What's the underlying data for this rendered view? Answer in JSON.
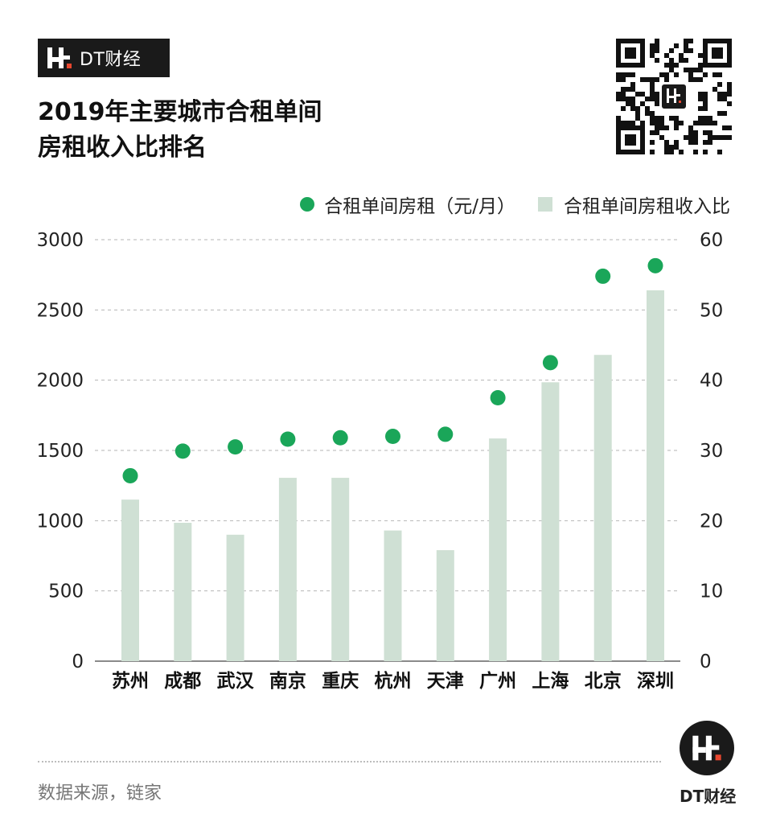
{
  "brand": {
    "name": "DT财经"
  },
  "title": {
    "line1": "2019年主要城市合租单间",
    "line2": "房租收入比排名"
  },
  "legend": {
    "rent": "合租单间房租（元/月）",
    "ratio": "合租单间房租收入比"
  },
  "footer": {
    "source": "数据来源，链家",
    "brand": "DT财经"
  },
  "colors": {
    "dot": "#1aa659",
    "bar": "#cfe0d4",
    "grid": "#b5b5b5",
    "text": "#222222"
  },
  "chart_data": {
    "type": "bar",
    "categories": [
      "苏州",
      "成都",
      "武汉",
      "南京",
      "重庆",
      "杭州",
      "天津",
      "广州",
      "上海",
      "北京",
      "深圳"
    ],
    "series": [
      {
        "name": "合租单间房租（元/月）",
        "type": "scatter",
        "axis": "left",
        "values": [
          1320,
          1495,
          1525,
          1580,
          1590,
          1600,
          1615,
          1875,
          2125,
          2740,
          2815
        ]
      },
      {
        "name": "合租单间房租收入比",
        "type": "bar",
        "axis": "right",
        "values": [
          23.0,
          19.7,
          18.0,
          26.1,
          26.1,
          18.6,
          15.8,
          31.7,
          39.7,
          43.6,
          52.8
        ]
      }
    ],
    "y_left": {
      "min": 0,
      "max": 3000,
      "ticks": [
        "0",
        "500",
        "1000",
        "1500",
        "2000",
        "2500",
        "3000"
      ]
    },
    "y_right": {
      "min": 0,
      "max": 60,
      "ticks": [
        "0",
        "10",
        "20",
        "30",
        "40",
        "50",
        "60"
      ]
    },
    "grid": true,
    "legend_position": "top-right"
  }
}
